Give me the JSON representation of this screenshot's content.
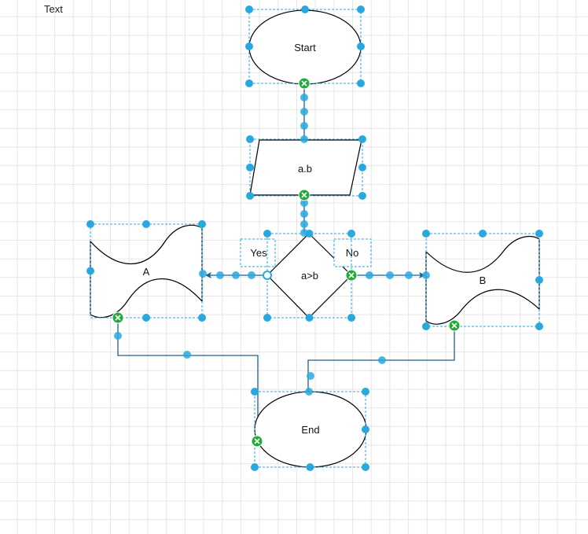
{
  "free_text": "Text",
  "shapes": {
    "start": "Start",
    "input": "a.b",
    "decision": "a>b",
    "a": "A",
    "b": "B",
    "end": "End"
  },
  "edge_labels": {
    "yes": "Yes",
    "no": "No"
  },
  "colors": {
    "stroke": "#000000",
    "connector": "#1f5f8b",
    "handle": "#29a8e0",
    "selection": "#29a8e0",
    "connected_point": "#21ab3a"
  }
}
